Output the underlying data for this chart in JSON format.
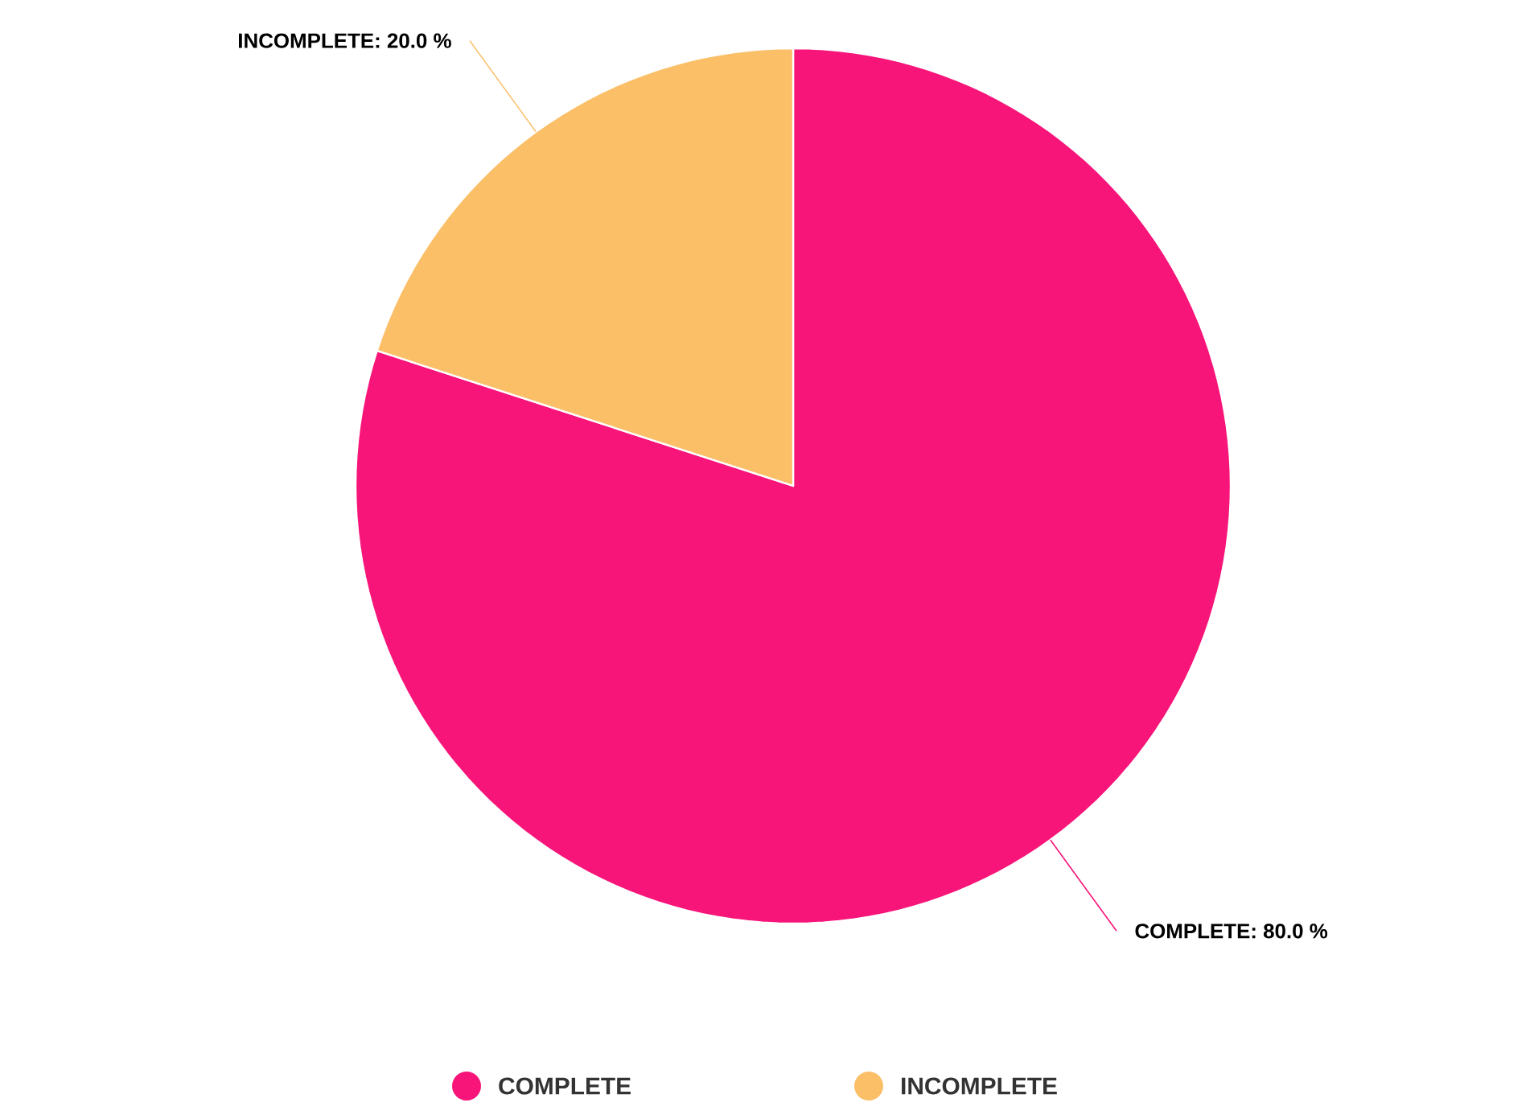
{
  "chart_data": {
    "type": "pie",
    "categories": [
      "COMPLETE",
      "INCOMPLETE"
    ],
    "values": [
      80,
      20
    ],
    "value_labels": [
      "COMPLETE: 80.0 %",
      "INCOMPLETE: 20.0 %"
    ],
    "colors": [
      "#f7157a",
      "#fbbf68"
    ],
    "legend": "bottom"
  }
}
